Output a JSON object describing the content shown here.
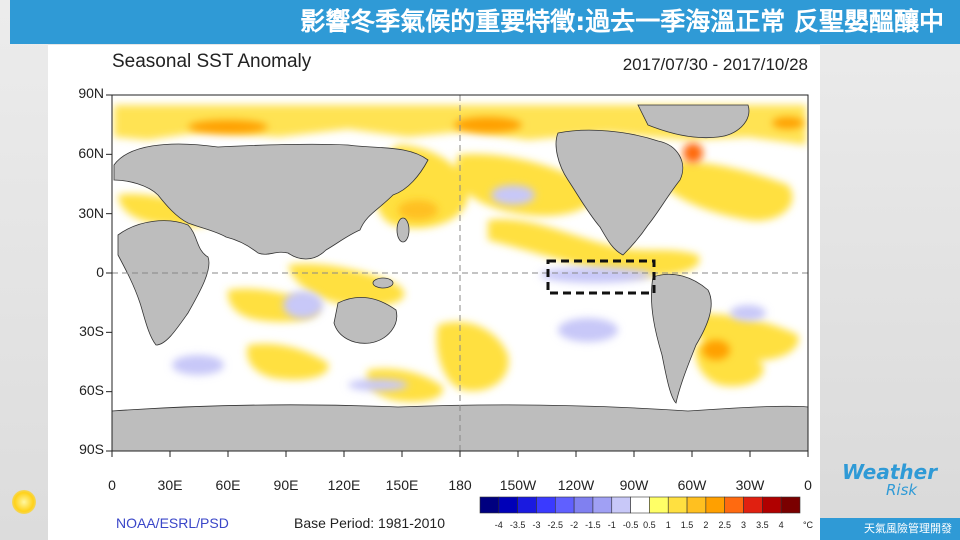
{
  "slide": {
    "title": "影響冬季氣候的重要特徵:過去一季海溫正常 反聖嬰醞釀中",
    "logo_text": "Weather",
    "logo_subtext": "Risk",
    "footer": "天氣風險管理開發"
  },
  "chart_data": {
    "type": "heatmap",
    "title": "Seasonal SST Anomaly",
    "date_range": "2017/07/30 - 2017/10/28",
    "source": "NOAA/ESRL/PSD",
    "base_period": "Base Period: 1981-2010",
    "lat_ticks": [
      "90N",
      "60N",
      "30N",
      "0",
      "30S",
      "60S",
      "90S"
    ],
    "lon_ticks": [
      "0",
      "30E",
      "60E",
      "90E",
      "120E",
      "150E",
      "180",
      "150W",
      "120W",
      "90W",
      "60W",
      "30W",
      "0"
    ],
    "colorbar": {
      "unit": "°C",
      "levels": [
        "-4",
        "-3.5",
        "-3",
        "-2.5",
        "-2",
        "-1.5",
        "-1",
        "-0.5",
        "0.5",
        "1",
        "1.5",
        "2",
        "2.5",
        "3",
        "3.5",
        "4"
      ],
      "colors": [
        "#000080",
        "#0000b8",
        "#1a1ae0",
        "#3a3aff",
        "#6060ff",
        "#8080f0",
        "#a0a0f4",
        "#c8c8f8",
        "#ffffff",
        "#ffff66",
        "#ffe040",
        "#ffc020",
        "#ffa000",
        "#ff6a10",
        "#e02010",
        "#b00000",
        "#7a0000"
      ]
    },
    "annotations": [
      "dashed box over equatorial central-east Pacific (~135W-80W, 5N-5S) marking cool anomaly"
    ],
    "colors": {
      "land": "#bdbdbd",
      "warm": "#ffe040",
      "cool": "#c8c8f8",
      "title_bar": "#2f9ad6"
    }
  }
}
